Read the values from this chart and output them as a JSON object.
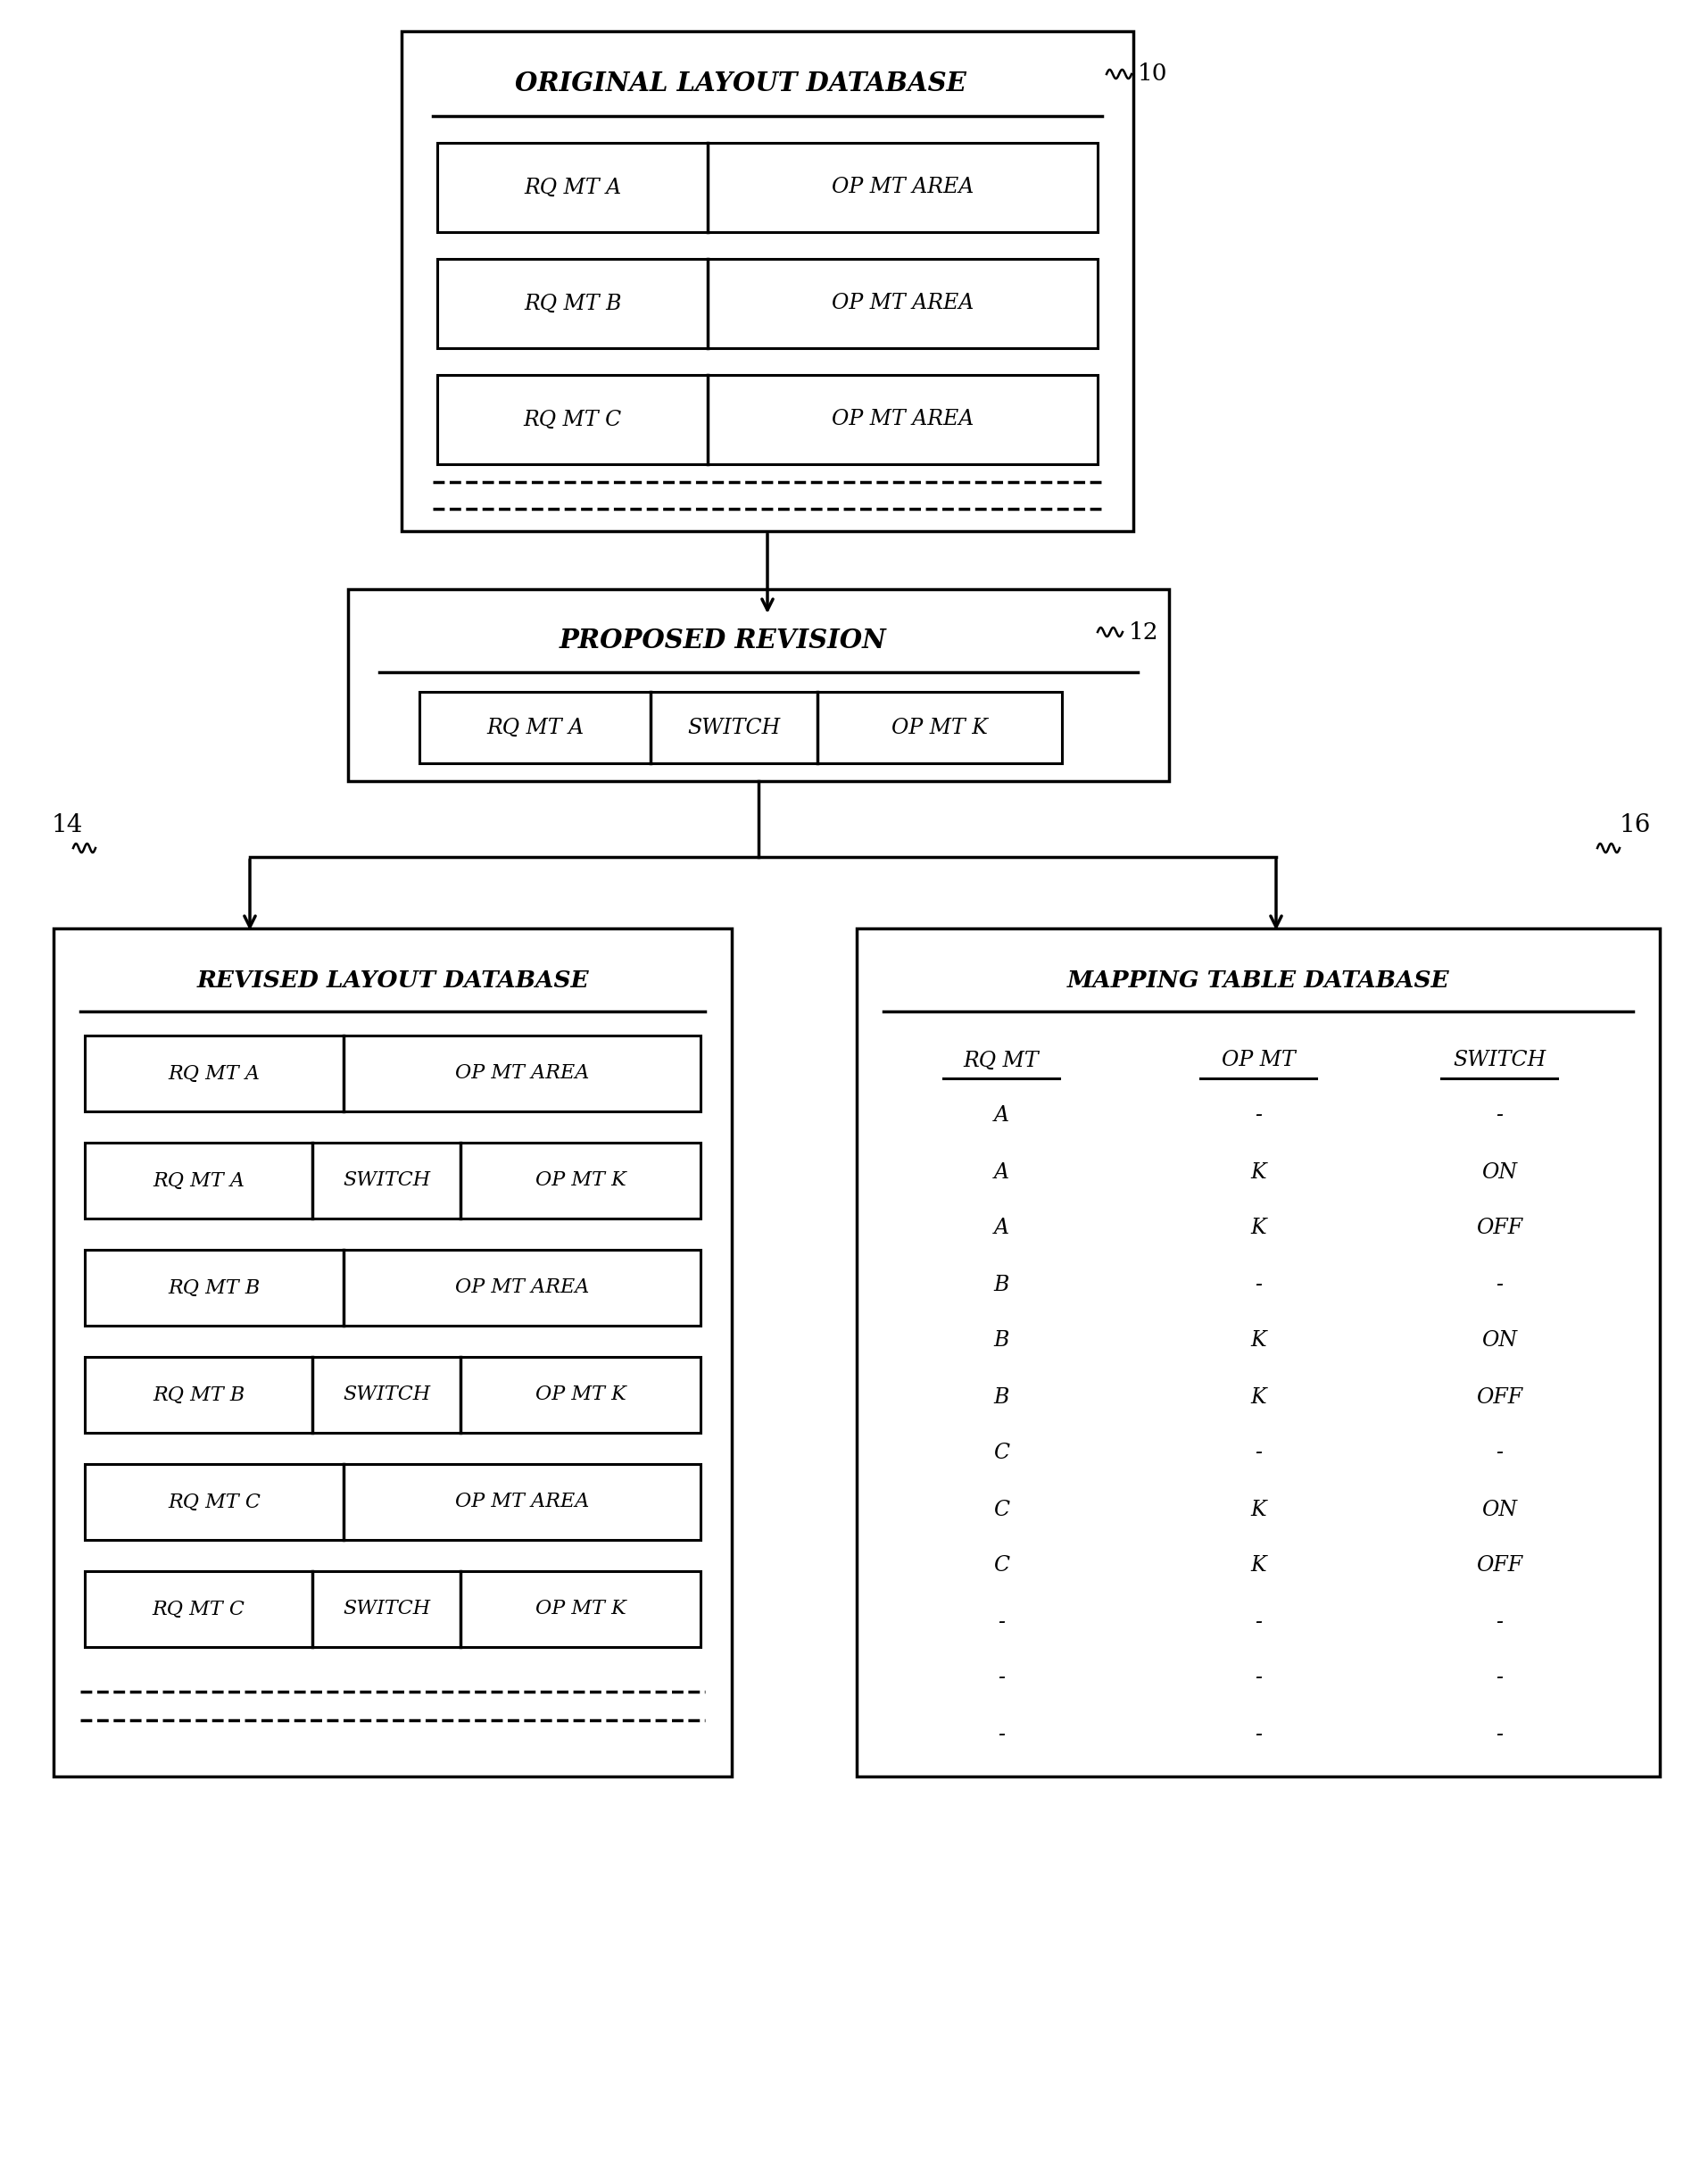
{
  "bg_color": "#ffffff",
  "box10_label": "ORIGINAL LAYOUT DATABASE",
  "box10_ref": "10",
  "box10_rows": [
    [
      "RQ MT A",
      "OP MT AREA"
    ],
    [
      "RQ MT B",
      "OP MT AREA"
    ],
    [
      "RQ MT C",
      "OP MT AREA"
    ]
  ],
  "box12_label": "PROPOSED REVISION",
  "box12_ref": "12",
  "box12_row": [
    "RQ MT A",
    "SWITCH",
    "OP MT K"
  ],
  "box14_label": "REVISED LAYOUT DATABASE",
  "box14_ref": "14",
  "box14_rows": [
    [
      "RQ MT A",
      "OP MT AREA"
    ],
    [
      "RQ MT A",
      "SWITCH",
      "OP MT K"
    ],
    [
      "RQ MT B",
      "OP MT AREA"
    ],
    [
      "RQ MT B",
      "SWITCH",
      "OP MT K"
    ],
    [
      "RQ MT C",
      "OP MT AREA"
    ],
    [
      "RQ MT C",
      "SWITCH",
      "OP MT K"
    ]
  ],
  "box16_label": "MAPPING TABLE DATABASE",
  "box16_ref": "16",
  "mapping_headers": [
    "RQ MT",
    "OP MT",
    "SWITCH"
  ],
  "mapping_rows": [
    [
      "A",
      "-",
      "-"
    ],
    [
      "A",
      "K",
      "ON"
    ],
    [
      "A",
      "K",
      "OFF"
    ],
    [
      "B",
      "-",
      "-"
    ],
    [
      "B",
      "K",
      "ON"
    ],
    [
      "B",
      "K",
      "OFF"
    ],
    [
      "C",
      "-",
      "-"
    ],
    [
      "C",
      "K",
      "ON"
    ],
    [
      "C",
      "K",
      "OFF"
    ],
    [
      "-",
      "-",
      "-"
    ],
    [
      "-",
      "-",
      "-"
    ],
    [
      "-",
      "-",
      "-"
    ]
  ]
}
